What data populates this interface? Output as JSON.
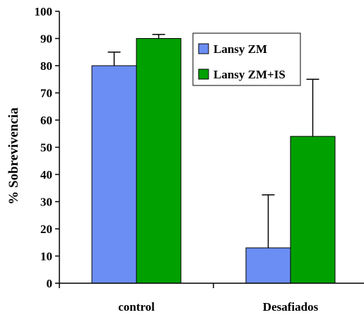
{
  "chart_data": {
    "type": "bar",
    "categories": [
      "control",
      "Desafiados"
    ],
    "series": [
      {
        "name": "Lansy ZM",
        "values": [
          80,
          13
        ],
        "errors": [
          5,
          19.5
        ],
        "color": "#6b8ef5"
      },
      {
        "name": "Lansy ZM+IS",
        "values": [
          90,
          54
        ],
        "errors": [
          1.5,
          21
        ],
        "color": "#00a000"
      }
    ],
    "ylabel": "% Sobrevivencia",
    "ylim": [
      0,
      100
    ],
    "yticks": [
      0,
      10,
      20,
      30,
      40,
      50,
      60,
      70,
      80,
      90,
      100
    ],
    "grid": false,
    "legend": "top-right"
  }
}
